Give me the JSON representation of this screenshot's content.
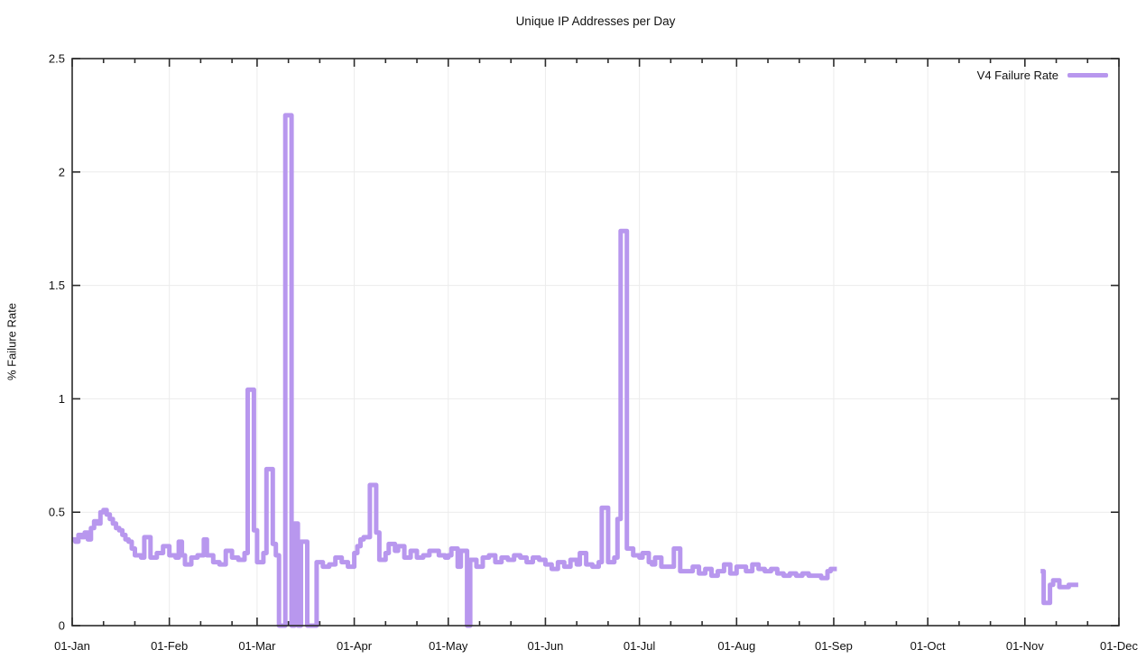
{
  "chart_data": {
    "type": "line",
    "style": "steps",
    "title": "Unique IP Addresses per Day",
    "xlabel": "",
    "ylabel": "% Failure Rate",
    "legend": {
      "label": "V4 Failure Rate",
      "position": "top-right"
    },
    "frame_color": "#2b2b2b",
    "grid": {
      "horizontal": true,
      "vertical": true,
      "color": "#ececec"
    },
    "x_axis": {
      "unit": "date",
      "span_days": 334,
      "minor_tick_offsets": [
        10,
        20
      ],
      "major_ticks": [
        {
          "day": 0,
          "label": "01-Jan"
        },
        {
          "day": 31,
          "label": "01-Feb"
        },
        {
          "day": 59,
          "label": "01-Mar"
        },
        {
          "day": 90,
          "label": "01-Apr"
        },
        {
          "day": 120,
          "label": "01-May"
        },
        {
          "day": 151,
          "label": "01-Jun"
        },
        {
          "day": 181,
          "label": "01-Jul"
        },
        {
          "day": 212,
          "label": "01-Aug"
        },
        {
          "day": 243,
          "label": "01-Sep"
        },
        {
          "day": 273,
          "label": "01-Oct"
        },
        {
          "day": 304,
          "label": "01-Nov"
        },
        {
          "day": 334,
          "label": "01-Dec"
        }
      ]
    },
    "y_axis": {
      "min": 0,
      "max": 2.5,
      "ticks": [
        0,
        0.5,
        1,
        1.5,
        2,
        2.5
      ],
      "tick_labels": [
        "0",
        "0.5",
        "1",
        "1.5",
        "2",
        "2.5"
      ]
    },
    "series": [
      {
        "name": "V4 Failure Rate",
        "color": "#b897ee",
        "line_width": 5,
        "points_format": "[day_offset_from_01-Jan, percent_failure_rate]; value holds until next breakpoint; null = line break/gap",
        "points": [
          [
            0,
            0.38
          ],
          [
            1,
            0.37
          ],
          [
            2,
            0.4
          ],
          [
            3,
            0.39
          ],
          [
            4,
            0.41
          ],
          [
            5,
            0.38
          ],
          [
            6,
            0.43
          ],
          [
            7,
            0.46
          ],
          [
            8,
            0.45
          ],
          [
            9,
            0.5
          ],
          [
            10,
            0.51
          ],
          [
            11,
            0.49
          ],
          [
            12,
            0.47
          ],
          [
            13,
            0.45
          ],
          [
            14,
            0.43
          ],
          [
            15,
            0.42
          ],
          [
            16,
            0.4
          ],
          [
            17,
            0.38
          ],
          [
            18,
            0.37
          ],
          [
            19,
            0.34
          ],
          [
            20,
            0.31
          ],
          [
            22,
            0.3
          ],
          [
            23,
            0.39
          ],
          [
            25,
            0.3
          ],
          [
            27,
            0.32
          ],
          [
            29,
            0.35
          ],
          [
            31,
            0.31
          ],
          [
            33,
            0.3
          ],
          [
            34,
            0.37
          ],
          [
            35,
            0.31
          ],
          [
            36,
            0.27
          ],
          [
            38,
            0.3
          ],
          [
            40,
            0.31
          ],
          [
            42,
            0.38
          ],
          [
            43,
            0.31
          ],
          [
            45,
            0.28
          ],
          [
            47,
            0.27
          ],
          [
            49,
            0.33
          ],
          [
            51,
            0.3
          ],
          [
            53,
            0.29
          ],
          [
            55,
            0.32
          ],
          [
            56,
            1.04
          ],
          [
            58,
            0.42
          ],
          [
            59,
            0.28
          ],
          [
            61,
            0.32
          ],
          [
            62,
            0.69
          ],
          [
            64,
            0.36
          ],
          [
            65,
            0.31
          ],
          [
            66,
            0.0
          ],
          [
            68,
            2.25
          ],
          [
            70,
            0.0
          ],
          [
            71,
            0.45
          ],
          [
            72,
            0.0
          ],
          [
            73,
            0.37
          ],
          [
            75,
            0.0
          ],
          [
            78,
            0.28
          ],
          [
            80,
            0.26
          ],
          [
            82,
            0.27
          ],
          [
            84,
            0.3
          ],
          [
            86,
            0.28
          ],
          [
            88,
            0.26
          ],
          [
            90,
            0.32
          ],
          [
            91,
            0.35
          ],
          [
            92,
            0.38
          ],
          [
            93,
            0.39
          ],
          [
            95,
            0.62
          ],
          [
            97,
            0.41
          ],
          [
            98,
            0.29
          ],
          [
            100,
            0.32
          ],
          [
            101,
            0.36
          ],
          [
            103,
            0.33
          ],
          [
            104,
            0.35
          ],
          [
            106,
            0.3
          ],
          [
            108,
            0.33
          ],
          [
            110,
            0.3
          ],
          [
            112,
            0.31
          ],
          [
            114,
            0.33
          ],
          [
            117,
            0.31
          ],
          [
            119,
            0.3
          ],
          [
            120,
            0.31
          ],
          [
            121,
            0.34
          ],
          [
            123,
            0.26
          ],
          [
            124,
            0.33
          ],
          [
            126,
            0.0
          ],
          [
            127,
            0.29
          ],
          [
            129,
            0.26
          ],
          [
            131,
            0.3
          ],
          [
            133,
            0.31
          ],
          [
            135,
            0.28
          ],
          [
            137,
            0.3
          ],
          [
            139,
            0.29
          ],
          [
            141,
            0.31
          ],
          [
            143,
            0.3
          ],
          [
            145,
            0.28
          ],
          [
            147,
            0.3
          ],
          [
            149,
            0.29
          ],
          [
            151,
            0.27
          ],
          [
            153,
            0.25
          ],
          [
            155,
            0.28
          ],
          [
            157,
            0.26
          ],
          [
            159,
            0.29
          ],
          [
            161,
            0.27
          ],
          [
            162,
            0.32
          ],
          [
            164,
            0.27
          ],
          [
            166,
            0.26
          ],
          [
            168,
            0.28
          ],
          [
            169,
            0.52
          ],
          [
            171,
            0.28
          ],
          [
            173,
            0.3
          ],
          [
            174,
            0.47
          ],
          [
            175,
            1.74
          ],
          [
            177,
            0.34
          ],
          [
            179,
            0.31
          ],
          [
            181,
            0.3
          ],
          [
            182,
            0.32
          ],
          [
            184,
            0.28
          ],
          [
            185,
            0.27
          ],
          [
            186,
            0.3
          ],
          [
            188,
            0.26
          ],
          [
            190,
            0.26
          ],
          [
            192,
            0.34
          ],
          [
            194,
            0.24
          ],
          [
            196,
            0.24
          ],
          [
            198,
            0.26
          ],
          [
            200,
            0.23
          ],
          [
            202,
            0.25
          ],
          [
            204,
            0.22
          ],
          [
            206,
            0.24
          ],
          [
            208,
            0.27
          ],
          [
            210,
            0.23
          ],
          [
            212,
            0.26
          ],
          [
            215,
            0.24
          ],
          [
            217,
            0.27
          ],
          [
            219,
            0.25
          ],
          [
            221,
            0.24
          ],
          [
            223,
            0.25
          ],
          [
            225,
            0.23
          ],
          [
            227,
            0.22
          ],
          [
            229,
            0.23
          ],
          [
            231,
            0.22
          ],
          [
            233,
            0.23
          ],
          [
            235,
            0.22
          ],
          [
            237,
            0.22
          ],
          [
            239,
            0.21
          ],
          [
            241,
            0.24
          ],
          [
            242,
            0.25
          ],
          [
            244,
            null
          ],
          [
            309,
            0.24
          ],
          [
            310,
            0.1
          ],
          [
            312,
            0.18
          ],
          [
            313,
            0.2
          ],
          [
            315,
            0.17
          ],
          [
            318,
            0.18
          ],
          [
            321,
            null
          ]
        ]
      }
    ]
  }
}
